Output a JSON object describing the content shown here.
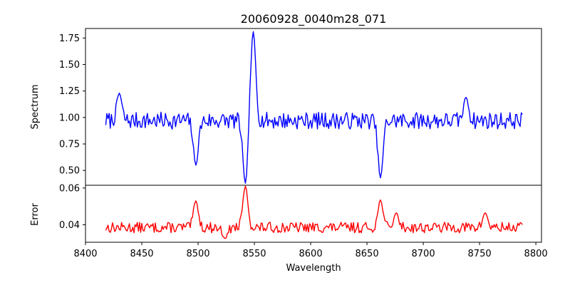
{
  "figure_title": "20060928_0040m28_071",
  "chart_data": [
    {
      "type": "line",
      "panel": "top",
      "title": "20060928_0040m28_071",
      "xlabel": "",
      "ylabel": "Spectrum",
      "xlim": [
        8400,
        8805
      ],
      "ylim": [
        0.36,
        1.84
      ],
      "yticks": [
        0.5,
        0.75,
        1.0,
        1.25,
        1.5,
        1.75
      ],
      "ytick_labels": [
        "0.50",
        "0.75",
        "1.00",
        "1.25",
        "1.50",
        "1.75"
      ],
      "grid": false,
      "series": [
        {
          "name": "Spectrum",
          "color": "#0000ff",
          "x_start": 8418,
          "x_end": 8788,
          "step": 1,
          "baseline": 0.97,
          "noise": 0.05,
          "seed": 7,
          "features": [
            {
              "x": 8430,
              "value": 1.23
            },
            {
              "x": 8498,
              "value": 0.55
            },
            {
              "x": 8542,
              "value": 0.37
            },
            {
              "x": 8549,
              "value": 1.81
            },
            {
              "x": 8662,
              "value": 0.43
            },
            {
              "x": 8738,
              "value": 1.19
            }
          ]
        }
      ]
    },
    {
      "type": "line",
      "panel": "bottom",
      "xlabel": "Wavelength",
      "ylabel": "Error",
      "xlim": [
        8400,
        8805
      ],
      "ylim": [
        0.0305,
        0.0615
      ],
      "xticks": [
        8400,
        8450,
        8500,
        8550,
        8600,
        8650,
        8700,
        8750,
        8800
      ],
      "xtick_labels": [
        "8400",
        "8450",
        "8500",
        "8550",
        "8600",
        "8650",
        "8700",
        "8750",
        "8800"
      ],
      "yticks": [
        0.04,
        0.06
      ],
      "ytick_labels": [
        "0.04",
        "0.06"
      ],
      "grid": false,
      "series": [
        {
          "name": "Error",
          "color": "#ff0000",
          "x_start": 8418,
          "x_end": 8788,
          "step": 1,
          "baseline": 0.0385,
          "noise": 0.0018,
          "seed": 13,
          "features": [
            {
              "x": 8498,
              "value": 0.053
            },
            {
              "x": 8524,
              "value": 0.0325
            },
            {
              "x": 8542,
              "value": 0.061
            },
            {
              "x": 8662,
              "value": 0.0535
            },
            {
              "x": 8676,
              "value": 0.0465
            },
            {
              "x": 8755,
              "value": 0.0465
            }
          ]
        }
      ]
    }
  ]
}
